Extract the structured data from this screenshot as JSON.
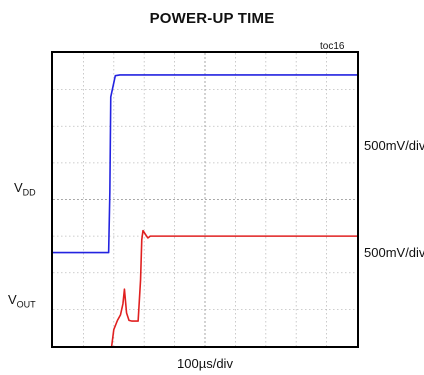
{
  "chart_data": {
    "type": "line",
    "title": "POWER-UP TIME",
    "figure_id": "toc16",
    "time_scale": "100µs/div",
    "grid": true,
    "divisions": {
      "x": 10,
      "y": 8
    },
    "series": [
      {
        "name": "VDD",
        "label_main": "V",
        "label_sub": "DD",
        "scale": "500mV/div",
        "color": "#2323e0",
        "x_div": [
          0,
          1.83,
          1.87,
          1.9,
          2.05,
          2.2,
          3.0,
          5.0,
          7.0,
          10.0
        ],
        "y_div": [
          5.45,
          5.45,
          3.8,
          1.2,
          0.62,
          0.6,
          0.6,
          0.6,
          0.6,
          0.6
        ]
      },
      {
        "name": "VOUT",
        "label_main": "V",
        "label_sub": "OUT",
        "scale": "500mV/div",
        "color": "#e02020",
        "x_div": [
          0,
          1.82,
          1.86,
          1.9,
          2.0,
          2.12,
          2.22,
          2.3,
          2.35,
          2.42,
          2.5,
          2.6,
          2.8,
          2.88,
          2.92,
          2.96,
          3.04,
          3.12,
          3.2,
          3.5,
          5.0,
          7.0,
          10.0
        ],
        "y_div": [
          9.15,
          9.15,
          8.8,
          8.2,
          7.55,
          7.3,
          7.15,
          6.85,
          6.45,
          7.1,
          7.3,
          7.32,
          7.32,
          6.2,
          5.1,
          4.85,
          4.95,
          5.05,
          5.0,
          5.0,
          5.0,
          5.0,
          5.0
        ]
      }
    ]
  }
}
